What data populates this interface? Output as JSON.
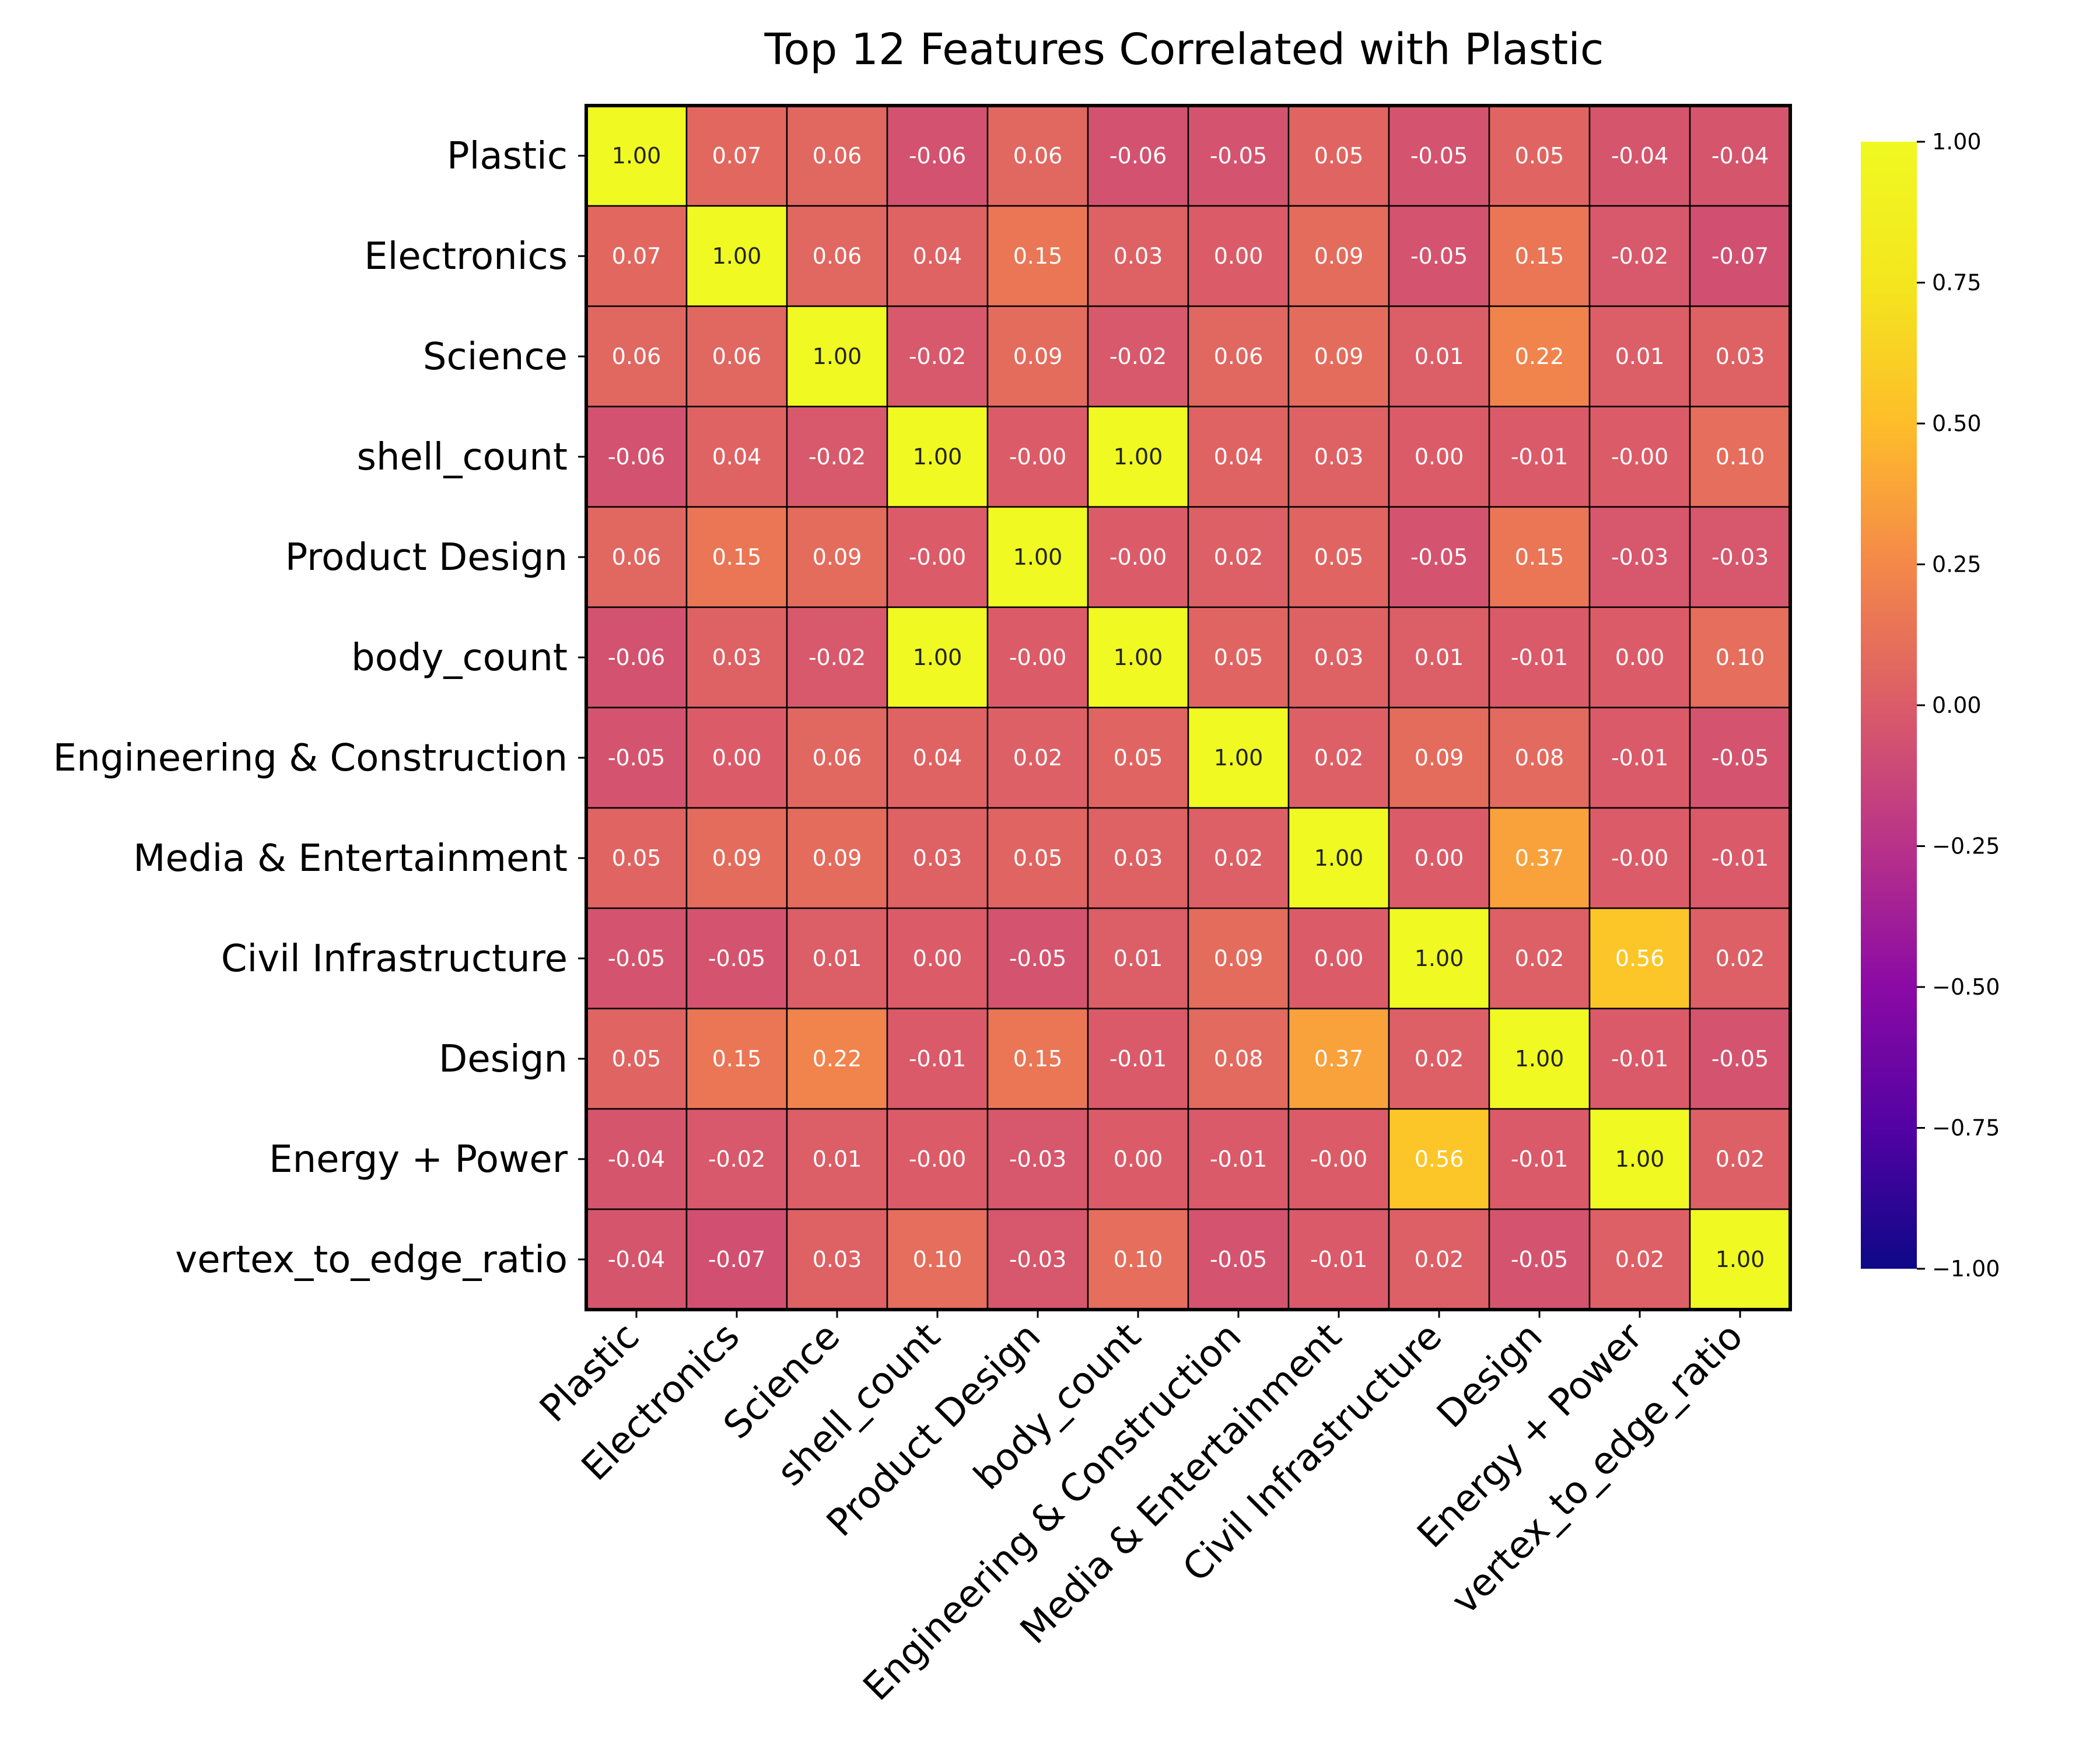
{
  "chart_data": {
    "type": "heatmap",
    "title": "Top 12 Features Correlated with Plastic",
    "labels": [
      "Plastic",
      "Electronics",
      "Science",
      "shell_count",
      "Product Design",
      "body_count",
      "Engineering & Construction",
      "Media & Entertainment",
      "Civil Infrastructure",
      "Design",
      "Energy + Power",
      "vertex_to_edge_ratio"
    ],
    "matrix": [
      [
        "1.00",
        "0.07",
        "0.06",
        "-0.06",
        "0.06",
        "-0.06",
        "-0.05",
        "0.05",
        "-0.05",
        "0.05",
        "-0.04",
        "-0.04"
      ],
      [
        "0.07",
        "1.00",
        "0.06",
        "0.04",
        "0.15",
        "0.03",
        "0.00",
        "0.09",
        "-0.05",
        "0.15",
        "-0.02",
        "-0.07"
      ],
      [
        "0.06",
        "0.06",
        "1.00",
        "-0.02",
        "0.09",
        "-0.02",
        "0.06",
        "0.09",
        "0.01",
        "0.22",
        "0.01",
        "0.03"
      ],
      [
        "-0.06",
        "0.04",
        "-0.02",
        "1.00",
        "-0.00",
        "1.00",
        "0.04",
        "0.03",
        "0.00",
        "-0.01",
        "-0.00",
        "0.10"
      ],
      [
        "0.06",
        "0.15",
        "0.09",
        "-0.00",
        "1.00",
        "-0.00",
        "0.02",
        "0.05",
        "-0.05",
        "0.15",
        "-0.03",
        "-0.03"
      ],
      [
        "-0.06",
        "0.03",
        "-0.02",
        "1.00",
        "-0.00",
        "1.00",
        "0.05",
        "0.03",
        "0.01",
        "-0.01",
        "0.00",
        "0.10"
      ],
      [
        "-0.05",
        "0.00",
        "0.06",
        "0.04",
        "0.02",
        "0.05",
        "1.00",
        "0.02",
        "0.09",
        "0.08",
        "-0.01",
        "-0.05"
      ],
      [
        "0.05",
        "0.09",
        "0.09",
        "0.03",
        "0.05",
        "0.03",
        "0.02",
        "1.00",
        "0.00",
        "0.37",
        "-0.00",
        "-0.01"
      ],
      [
        "-0.05",
        "-0.05",
        "0.01",
        "0.00",
        "-0.05",
        "0.01",
        "0.09",
        "0.00",
        "1.00",
        "0.02",
        "0.56",
        "0.02"
      ],
      [
        "0.05",
        "0.15",
        "0.22",
        "-0.01",
        "0.15",
        "-0.01",
        "0.08",
        "0.37",
        "0.02",
        "1.00",
        "-0.01",
        "-0.05"
      ],
      [
        "-0.04",
        "-0.02",
        "0.01",
        "-0.00",
        "-0.03",
        "0.00",
        "-0.01",
        "-0.00",
        "0.56",
        "-0.01",
        "1.00",
        "0.02"
      ],
      [
        "-0.04",
        "-0.07",
        "0.03",
        "0.10",
        "-0.03",
        "0.10",
        "-0.05",
        "-0.01",
        "0.02",
        "-0.05",
        "0.02",
        "1.00"
      ]
    ],
    "value_range": [
      -1,
      1
    ],
    "colormap": "plasma",
    "colorbar_ticks": [
      "1.00",
      "0.75",
      "0.50",
      "0.25",
      "0.00",
      "−0.25",
      "−0.50",
      "−0.75",
      "−1.00"
    ],
    "colorbar_tick_values": [
      1,
      0.75,
      0.5,
      0.25,
      0,
      -0.25,
      -0.5,
      -0.75,
      -1
    ],
    "gridlines": true,
    "colorbar_position": "right"
  }
}
